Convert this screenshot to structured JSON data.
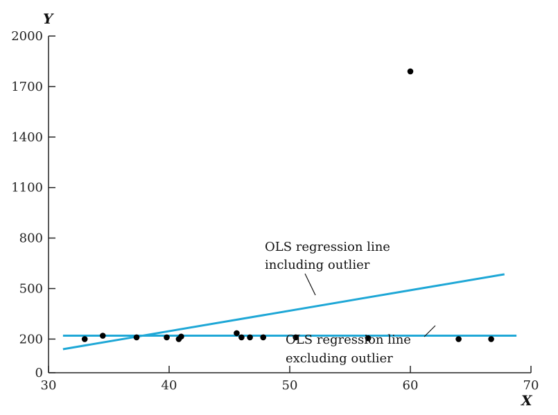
{
  "chart_data": {
    "type": "scatter",
    "xlabel": "X",
    "ylabel": "Y",
    "xlim": [
      30,
      70
    ],
    "ylim": [
      0,
      2000
    ],
    "x_ticks": [
      30,
      40,
      50,
      60,
      70
    ],
    "y_ticks": [
      0,
      200,
      500,
      800,
      1100,
      1400,
      1700,
      2000
    ],
    "y_tick_labels": [
      "0",
      "200",
      "500",
      "800",
      "1100",
      "1400",
      "1700",
      "2000"
    ],
    "points": [
      {
        "x": 33,
        "y": 200
      },
      {
        "x": 34.5,
        "y": 220
      },
      {
        "x": 37.3,
        "y": 210
      },
      {
        "x": 39.8,
        "y": 210
      },
      {
        "x": 40.8,
        "y": 200
      },
      {
        "x": 41.0,
        "y": 215
      },
      {
        "x": 45.6,
        "y": 235
      },
      {
        "x": 46.0,
        "y": 210
      },
      {
        "x": 46.7,
        "y": 210
      },
      {
        "x": 47.8,
        "y": 210
      },
      {
        "x": 50.5,
        "y": 210
      },
      {
        "x": 56.5,
        "y": 205
      },
      {
        "x": 60.0,
        "y": 1790
      },
      {
        "x": 64.0,
        "y": 200
      },
      {
        "x": 66.7,
        "y": 200
      }
    ],
    "lines": [
      {
        "name": "OLS regression line including outlier",
        "x1": 31.2,
        "y1": 140,
        "x2": 67.8,
        "y2": 585,
        "color": "#1ea7d6"
      },
      {
        "name": "OLS regression line excluding outlier",
        "x1": 31.2,
        "y1": 220,
        "x2": 68.8,
        "y2": 220,
        "color": "#1ea7d6"
      }
    ],
    "annotations": [
      {
        "line1": "OLS regression line",
        "line2": "including outlier"
      },
      {
        "line1": "OLS regression line",
        "line2": "excluding outlier"
      }
    ]
  }
}
